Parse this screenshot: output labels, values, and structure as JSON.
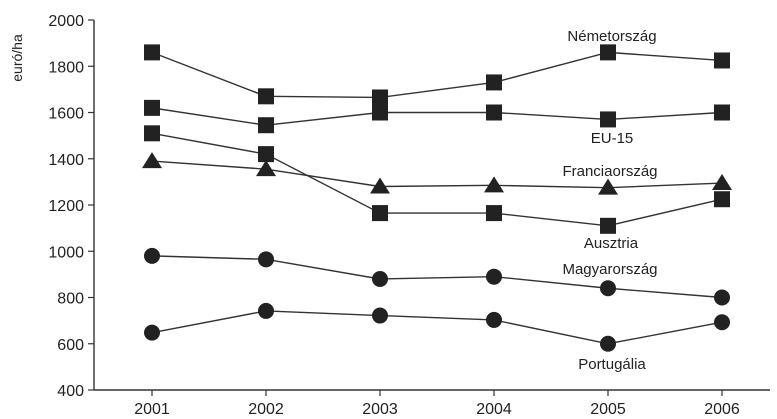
{
  "chart_data": {
    "type": "line",
    "title": "",
    "xlabel": "",
    "ylabel": "euró/ha",
    "x": [
      "2001",
      "2002",
      "2003",
      "2004",
      "2005",
      "2006"
    ],
    "ylim": [
      400,
      2000
    ],
    "yticks": [
      "400",
      "600",
      "800",
      "1000",
      "1200",
      "1400",
      "1600",
      "1800",
      "2000"
    ],
    "grid": false,
    "legend": "none (series names labeled directly next to the lines)",
    "series": [
      {
        "name": "Németország",
        "marker": "square",
        "color": "#333333",
        "values": [
          1860,
          1670,
          1665,
          1730,
          1860,
          1825
        ]
      },
      {
        "name": "EU-15",
        "marker": "square",
        "color": "#333333",
        "values": [
          1620,
          1545,
          1600,
          1600,
          1570,
          1600
        ]
      },
      {
        "name": "Franciaország",
        "marker": "triangle",
        "color": "#333333",
        "values": [
          1390,
          1355,
          1280,
          1285,
          1275,
          1295
        ]
      },
      {
        "name": "Ausztria",
        "marker": "square",
        "color": "#333333",
        "values": [
          1510,
          1420,
          1165,
          1165,
          1110,
          1225
        ]
      },
      {
        "name": "Magyarország",
        "marker": "circle",
        "color": "#333333",
        "values": [
          980,
          965,
          880,
          890,
          840,
          800
        ]
      },
      {
        "name": "Portugália",
        "marker": "circle",
        "color": "#333333",
        "values": [
          648,
          742,
          722,
          703,
          600,
          693
        ]
      }
    ]
  }
}
